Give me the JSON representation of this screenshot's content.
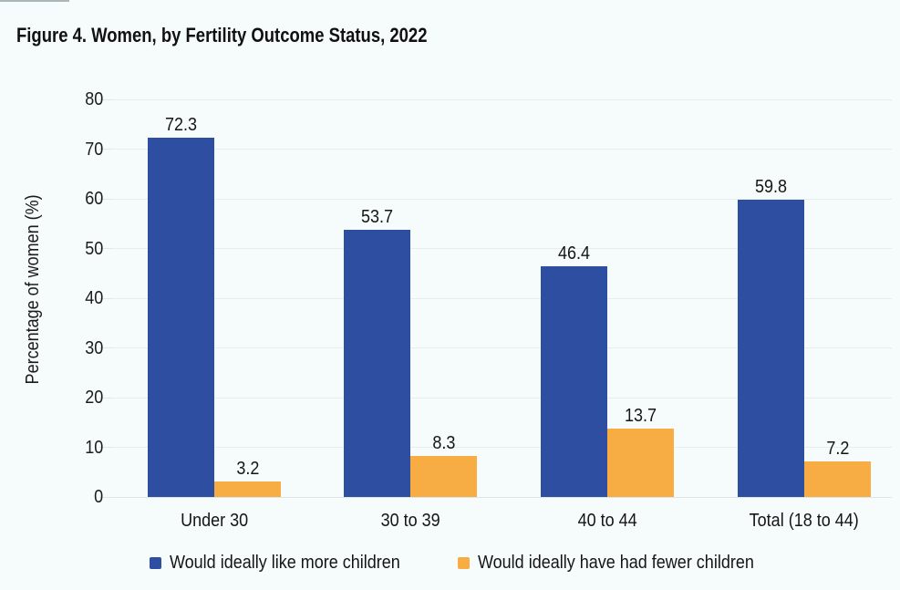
{
  "page": {
    "background": "#f6fbfb",
    "text_color": "#161616",
    "gridline_color": "#e7eeee"
  },
  "title": "Figure 4. Women, by Fertility Outcome Status, 2022",
  "chart_data": {
    "type": "bar",
    "title": "Figure 4. Women, by Fertility Outcome Status, 2022",
    "categories": [
      "Under 30",
      "30 to 39",
      "40 to 44",
      "Total (18 to 44)"
    ],
    "series": [
      {
        "name": "Would ideally like more children",
        "color": "#2e4fa1",
        "values": [
          72.3,
          53.7,
          46.4,
          59.8
        ]
      },
      {
        "name": "Would ideally have had fewer children",
        "color": "#f7ac44",
        "values": [
          3.2,
          8.3,
          13.7,
          7.2
        ]
      }
    ],
    "xlabel": "",
    "ylabel": "Percentage of women (%)",
    "ylim": [
      0,
      80
    ],
    "yticks": [
      0,
      10,
      20,
      30,
      40,
      50,
      60,
      70,
      80
    ],
    "grid": true,
    "legend_position": "bottom",
    "value_labels": "one-decimal"
  }
}
